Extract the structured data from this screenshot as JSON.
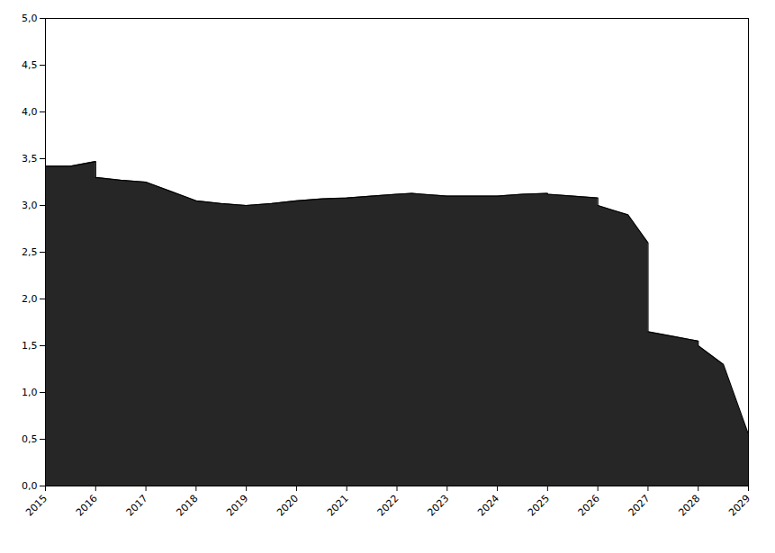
{
  "chart_data": {
    "type": "area",
    "x": [
      2015,
      2015.5,
      2016,
      2016,
      2016.5,
      2017,
      2017.5,
      2018,
      2018.5,
      2019,
      2019,
      2019.5,
      2020,
      2020.5,
      2021,
      2021.5,
      2022,
      2022,
      2022.3,
      2022.5,
      2023,
      2023.5,
      2024,
      2024.5,
      2025,
      2025,
      2025.5,
      2026,
      2026,
      2026.3,
      2026.6,
      2027,
      2027,
      2027.5,
      2028,
      2028,
      2028.5,
      2029
    ],
    "values": [
      3.42,
      3.42,
      3.47,
      3.3,
      3.27,
      3.25,
      3.15,
      3.05,
      3.02,
      3.0,
      3.0,
      3.02,
      3.05,
      3.07,
      3.08,
      3.1,
      3.12,
      3.12,
      3.13,
      3.12,
      3.1,
      3.1,
      3.1,
      3.12,
      3.13,
      3.12,
      3.1,
      3.08,
      3.0,
      2.95,
      2.9,
      2.6,
      1.65,
      1.6,
      1.55,
      1.5,
      1.3,
      0.55
    ],
    "xlim": [
      2015,
      2029
    ],
    "ylim": [
      0,
      5.0
    ],
    "xticks": [
      2015,
      2016,
      2017,
      2018,
      2019,
      2020,
      2021,
      2022,
      2023,
      2024,
      2025,
      2026,
      2027,
      2028,
      2029
    ],
    "yticks": [
      {
        "value": 0.0,
        "label": "0,0"
      },
      {
        "value": 0.5,
        "label": "0,5"
      },
      {
        "value": 1.0,
        "label": "1,0"
      },
      {
        "value": 1.5,
        "label": "1,5"
      },
      {
        "value": 2.0,
        "label": "2,0"
      },
      {
        "value": 2.5,
        "label": "2,5"
      },
      {
        "value": 3.0,
        "label": "3,0"
      },
      {
        "value": 3.5,
        "label": "3,5"
      },
      {
        "value": 4.0,
        "label": "4,0"
      },
      {
        "value": 4.5,
        "label": "4,5"
      },
      {
        "value": 5.0,
        "label": "5,0"
      }
    ],
    "grid": false
  }
}
